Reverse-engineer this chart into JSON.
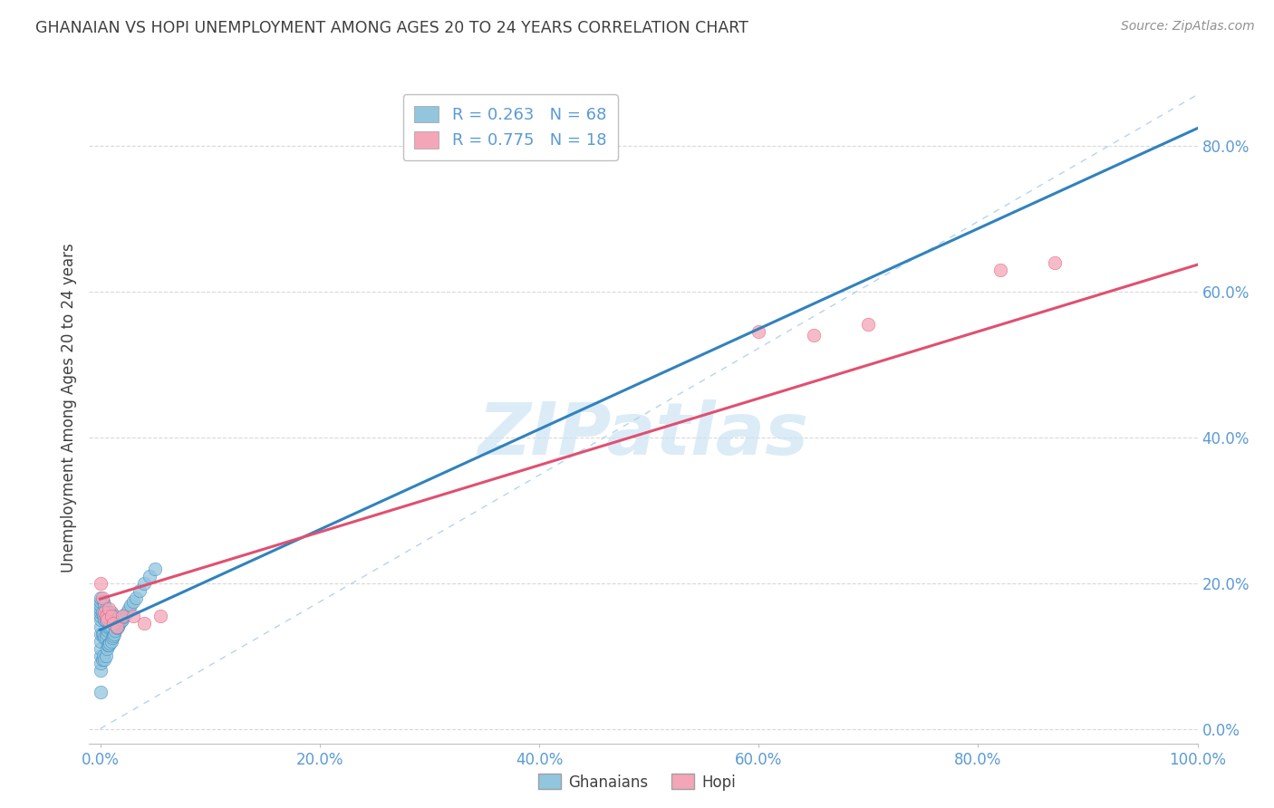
{
  "title": "GHANAIAN VS HOPI UNEMPLOYMENT AMONG AGES 20 TO 24 YEARS CORRELATION CHART",
  "source": "Source: ZipAtlas.com",
  "ylabel": "Unemployment Among Ages 20 to 24 years",
  "watermark": "ZIPatlas",
  "legend_label_1": "R = 0.263   N = 68",
  "legend_label_2": "R = 0.775   N = 18",
  "blue_scatter_color": "#92c5de",
  "pink_scatter_color": "#f4a5b8",
  "blue_line_color": "#3182bd",
  "pink_line_color": "#e05070",
  "dashed_line_color": "#b0cfe8",
  "title_color": "#404040",
  "axis_tick_color": "#5b9bd5",
  "grid_color": "#d0d0d0",
  "background_color": "#ffffff",
  "ghanaian_x": [
    0.0,
    0.0,
    0.0,
    0.0,
    0.0,
    0.0,
    0.0,
    0.0,
    0.0,
    0.0,
    0.0,
    0.0,
    0.0,
    0.0,
    0.0,
    0.002,
    0.002,
    0.002,
    0.003,
    0.003,
    0.003,
    0.003,
    0.004,
    0.004,
    0.004,
    0.004,
    0.005,
    0.005,
    0.005,
    0.005,
    0.006,
    0.006,
    0.006,
    0.007,
    0.007,
    0.007,
    0.008,
    0.008,
    0.008,
    0.009,
    0.009,
    0.01,
    0.01,
    0.01,
    0.011,
    0.011,
    0.012,
    0.012,
    0.013,
    0.013,
    0.014,
    0.015,
    0.016,
    0.017,
    0.018,
    0.019,
    0.02,
    0.021,
    0.022,
    0.024,
    0.026,
    0.028,
    0.03,
    0.033,
    0.036,
    0.04,
    0.045,
    0.05
  ],
  "ghanaian_y": [
    0.05,
    0.08,
    0.09,
    0.1,
    0.11,
    0.12,
    0.13,
    0.14,
    0.15,
    0.155,
    0.16,
    0.165,
    0.17,
    0.175,
    0.18,
    0.095,
    0.13,
    0.16,
    0.1,
    0.13,
    0.155,
    0.175,
    0.095,
    0.125,
    0.15,
    0.17,
    0.1,
    0.125,
    0.148,
    0.165,
    0.11,
    0.13,
    0.155,
    0.115,
    0.135,
    0.16,
    0.115,
    0.138,
    0.16,
    0.118,
    0.14,
    0.12,
    0.14,
    0.16,
    0.125,
    0.148,
    0.128,
    0.152,
    0.13,
    0.155,
    0.135,
    0.138,
    0.14,
    0.143,
    0.146,
    0.148,
    0.15,
    0.153,
    0.156,
    0.16,
    0.165,
    0.17,
    0.175,
    0.18,
    0.19,
    0.2,
    0.21,
    0.22
  ],
  "hopi_x": [
    0.0,
    0.002,
    0.004,
    0.005,
    0.006,
    0.008,
    0.01,
    0.012,
    0.015,
    0.02,
    0.03,
    0.04,
    0.055,
    0.6,
    0.65,
    0.7,
    0.82,
    0.87
  ],
  "hopi_y": [
    0.2,
    0.18,
    0.16,
    0.155,
    0.15,
    0.165,
    0.155,
    0.145,
    0.14,
    0.155,
    0.155,
    0.145,
    0.155,
    0.545,
    0.54,
    0.555,
    0.63,
    0.64
  ],
  "x_ticks": [
    0.0,
    0.2,
    0.4,
    0.6,
    0.8,
    1.0
  ],
  "y_ticks": [
    0.0,
    0.2,
    0.4,
    0.6,
    0.8
  ],
  "xlim": [
    -0.01,
    1.0
  ],
  "ylim": [
    -0.02,
    0.9
  ]
}
